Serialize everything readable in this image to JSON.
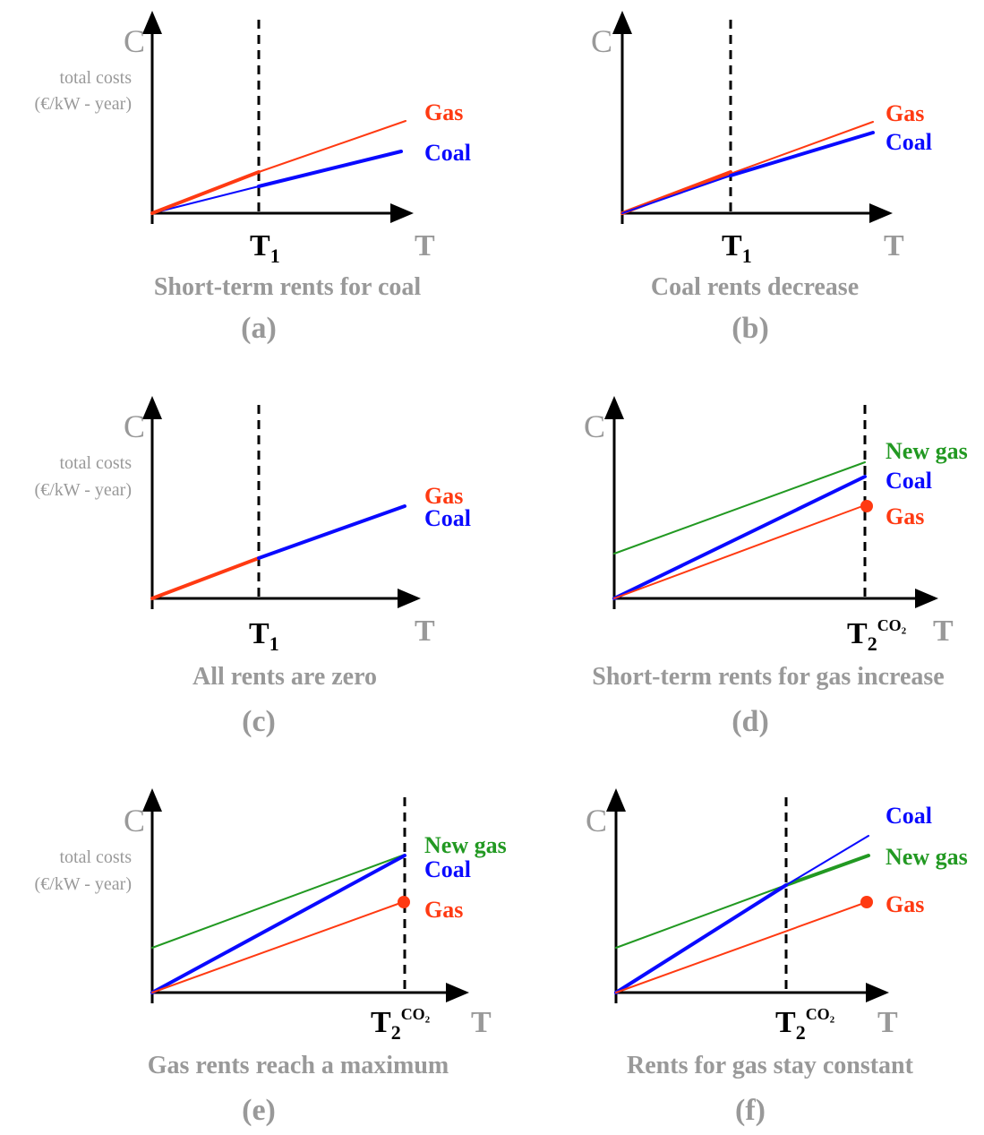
{
  "colors": {
    "gas": "#ff3a12",
    "coal": "#0a0aff",
    "new_gas": "#229922",
    "axis": "#000000",
    "muted": "#999999"
  },
  "panels": [
    {
      "id": "a",
      "y_axis_label": "C",
      "y_axis_hint": [
        "total costs",
        "(€/kW - year)"
      ],
      "x_axis_label": "T",
      "marker_label": "T",
      "marker_sub": "1",
      "marker_sup": "",
      "caption": "Short-term rents for coal",
      "letter": "(a)",
      "series_labels": [
        {
          "text": "Gas",
          "color": "gas"
        },
        {
          "text": "Coal",
          "color": "coal"
        }
      ]
    },
    {
      "id": "b",
      "y_axis_label": "C",
      "y_axis_hint": [],
      "x_axis_label": "T",
      "marker_label": "T",
      "marker_sub": "1",
      "marker_sup": "",
      "caption": "Coal rents decrease",
      "letter": "(b)",
      "series_labels": [
        {
          "text": "Gas",
          "color": "gas"
        },
        {
          "text": "Coal",
          "color": "coal"
        }
      ]
    },
    {
      "id": "c",
      "y_axis_label": "C",
      "y_axis_hint": [
        "total costs",
        "(€/kW - year)"
      ],
      "x_axis_label": "T",
      "marker_label": "T",
      "marker_sub": "1",
      "marker_sup": "",
      "caption": "All rents are zero",
      "letter": "(c)",
      "series_labels": [
        {
          "text": "Gas",
          "color": "gas"
        },
        {
          "text": "Coal",
          "color": "coal"
        }
      ]
    },
    {
      "id": "d",
      "y_axis_label": "C",
      "y_axis_hint": [],
      "x_axis_label": "T",
      "marker_label": "T",
      "marker_sub": "2",
      "marker_sup": "CO₂",
      "caption": "Short-term rents for gas increase",
      "letter": "(d)",
      "series_labels": [
        {
          "text": "New gas",
          "color": "new_gas"
        },
        {
          "text": "Coal",
          "color": "coal"
        },
        {
          "text": "Gas",
          "color": "gas"
        }
      ]
    },
    {
      "id": "e",
      "y_axis_label": "C",
      "y_axis_hint": [
        "total costs",
        "(€/kW - year)"
      ],
      "x_axis_label": "T",
      "marker_label": "T",
      "marker_sub": "2",
      "marker_sup": "CO₂",
      "caption": "Gas rents reach a maximum",
      "letter": "(e)",
      "series_labels": [
        {
          "text": "New gas",
          "color": "new_gas"
        },
        {
          "text": "Coal",
          "color": "coal"
        },
        {
          "text": "Gas",
          "color": "gas"
        }
      ]
    },
    {
      "id": "f",
      "y_axis_label": "C",
      "y_axis_hint": [],
      "x_axis_label": "T",
      "marker_label": "T",
      "marker_sub": "2",
      "marker_sup": "CO₂",
      "caption": "Rents for gas stay constant",
      "letter": "(f)",
      "series_labels": [
        {
          "text": "Coal",
          "color": "coal"
        },
        {
          "text": "New gas",
          "color": "new_gas"
        },
        {
          "text": "Gas",
          "color": "gas"
        }
      ]
    }
  ]
}
